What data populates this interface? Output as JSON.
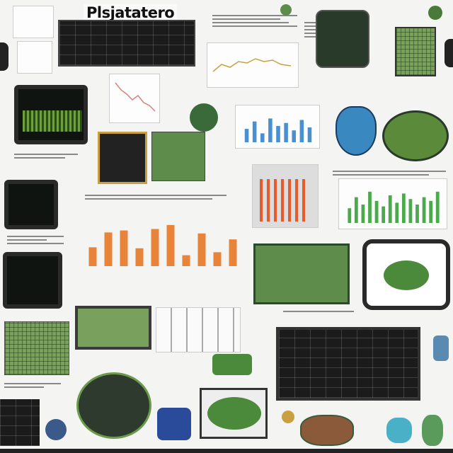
{
  "poster": {
    "title": "Plsjatatero"
  },
  "charts": {
    "bar_orange": {
      "values": [
        38,
        68,
        72,
        36,
        75,
        83,
        22,
        66,
        28,
        54
      ],
      "color": "#e8843a"
    },
    "bar_blue": {
      "values": [
        45,
        70,
        30,
        80,
        55,
        65,
        40,
        75,
        50
      ],
      "color": "#4a8fd0"
    },
    "bar_green": {
      "values": [
        40,
        70,
        50,
        85,
        60,
        45,
        75,
        55,
        80,
        65,
        50,
        70,
        60,
        85
      ],
      "color": "#4caa4c"
    }
  },
  "colors": {
    "accent_green": "#5e8c4a",
    "accent_orange": "#e8843a",
    "accent_blue": "#4a8fd0"
  }
}
